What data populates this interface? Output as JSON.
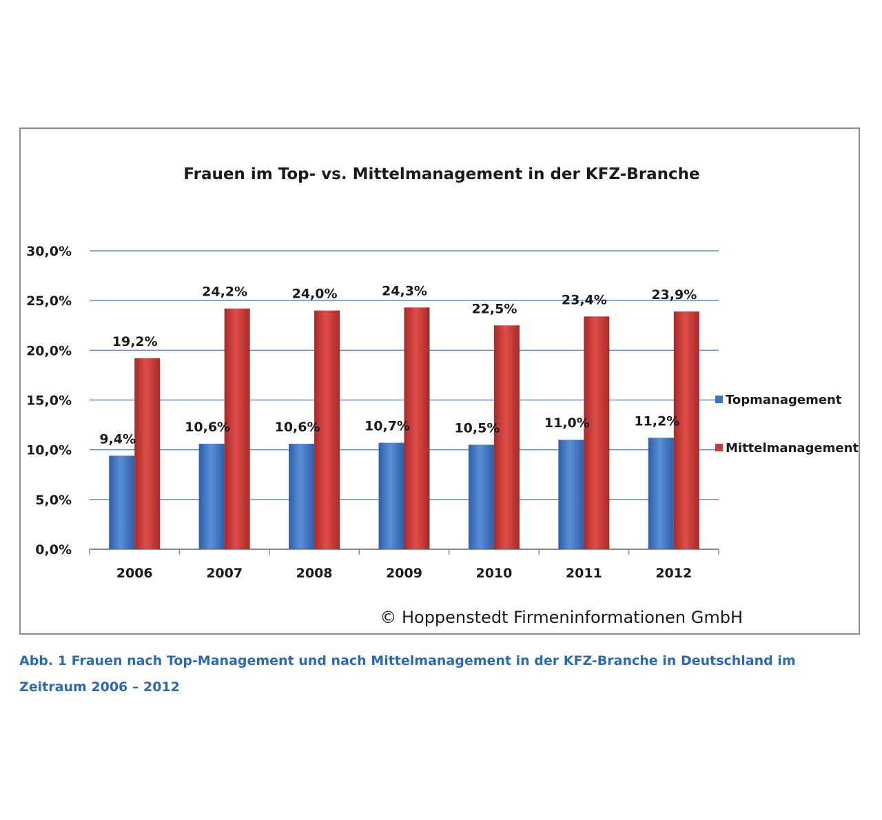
{
  "chart_data": {
    "type": "bar",
    "title": "Frauen im Top- vs. Mittelmanagement in der KFZ-Branche",
    "categories": [
      "2006",
      "2007",
      "2008",
      "2009",
      "2010",
      "2011",
      "2012"
    ],
    "series": [
      {
        "name": "Topmanagement",
        "values": [
          9.4,
          10.6,
          10.6,
          10.7,
          10.5,
          11.0,
          11.2
        ],
        "labels": [
          "9,4%",
          "10,6%",
          "10,6%",
          "10,7%",
          "10,5%",
          "11,0%",
          "11,2%"
        ],
        "color": "#3f72c0"
      },
      {
        "name": "Mittelmanagement",
        "values": [
          19.2,
          24.2,
          24.0,
          24.3,
          22.5,
          23.4,
          23.9
        ],
        "labels": [
          "19,2%",
          "24,2%",
          "24,0%",
          "24,3%",
          "22,5%",
          "23,4%",
          "23,9%"
        ],
        "color": "#c83a37"
      }
    ],
    "y_ticks": [
      "0,0%",
      "5,0%",
      "10,0%",
      "15,0%",
      "20,0%",
      "25,0%",
      "30,0%"
    ],
    "ylim": [
      0,
      30
    ],
    "grid": true,
    "legend_position": "right"
  },
  "copyright": "© Hoppenstedt Firmeninformationen GmbH",
  "caption": "Abb. 1  Frauen nach Top-Management und nach Mittelmanagement in der KFZ-Branche in Deutschland im Zeitraum 2006 – 2012"
}
